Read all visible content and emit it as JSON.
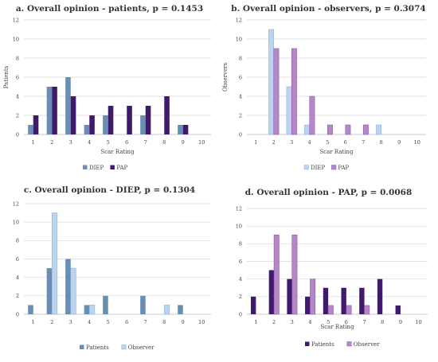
{
  "colors": {
    "dark_blue": "#6a8db3",
    "dark_purple": "#3f1a6b",
    "light_blue": "#bcd4ef",
    "light_blue_stroke": "#8fb3dc",
    "light_purple": "#b587c9",
    "light_purple_stroke": "#8b5aa5",
    "grid": "#d9d9d9"
  },
  "chart_data": [
    {
      "id": "a",
      "type": "bar",
      "title": "a. Overall opinion - patients, p = 0.1453",
      "xlabel": "Scar Rating",
      "ylabel": "Patients",
      "ylim": [
        0,
        12
      ],
      "yticks": [
        0,
        2,
        4,
        6,
        8,
        10,
        12
      ],
      "categories": [
        "1",
        "2",
        "3",
        "4",
        "5",
        "6",
        "7",
        "8",
        "9",
        "10"
      ],
      "grid": true,
      "legend_position": "bottom",
      "series": [
        {
          "name": "DIEP",
          "color_key": "dark_blue",
          "values": [
            1,
            5,
            6,
            1,
            2,
            0,
            2,
            0,
            1,
            0
          ]
        },
        {
          "name": "PAP",
          "color_key": "dark_purple",
          "values": [
            2,
            5,
            4,
            2,
            3,
            3,
            3,
            4,
            1,
            0
          ]
        }
      ]
    },
    {
      "id": "b",
      "type": "bar",
      "title": "b. Overall opinion - observers, p = 0.3074",
      "xlabel": "Scar Rating",
      "ylabel": "Observers",
      "ylim": [
        0,
        12
      ],
      "yticks": [
        0,
        2,
        4,
        6,
        8,
        10,
        12
      ],
      "categories": [
        "1",
        "2",
        "3",
        "4",
        "5",
        "6",
        "7",
        "8",
        "9",
        "10"
      ],
      "grid": true,
      "legend_position": "bottom",
      "series": [
        {
          "name": "DIEP",
          "color_key": "light_blue",
          "values": [
            0,
            11,
            5,
            1,
            0,
            0,
            0,
            1,
            0,
            0
          ]
        },
        {
          "name": "PAP",
          "color_key": "light_purple",
          "values": [
            0,
            9,
            9,
            4,
            1,
            1,
            1,
            0,
            0,
            0
          ]
        }
      ]
    },
    {
      "id": "c",
      "type": "bar",
      "title": "c. Overall opinion - DIEP, p = 0.1304",
      "xlabel": "Scar Rating",
      "ylabel": "",
      "ylim": [
        0,
        12
      ],
      "yticks": [
        0,
        2,
        4,
        6,
        8,
        10,
        12
      ],
      "categories": [
        "1",
        "2",
        "3",
        "4",
        "5",
        "6",
        "7",
        "8",
        "9",
        "10"
      ],
      "grid": true,
      "legend_position": "bottom",
      "series": [
        {
          "name": "Patients",
          "color_key": "dark_blue",
          "values": [
            1,
            5,
            6,
            1,
            2,
            0,
            2,
            0,
            1,
            0
          ]
        },
        {
          "name": "Observer",
          "color_key": "light_blue",
          "values": [
            0,
            11,
            5,
            1,
            0,
            0,
            0,
            1,
            0,
            0
          ]
        }
      ]
    },
    {
      "id": "d",
      "type": "bar",
      "title": "d. Overall opinion - PAP, p = 0.0068",
      "xlabel": "Scar Rating",
      "ylabel": "",
      "ylim": [
        0,
        12
      ],
      "yticks": [
        0,
        2,
        4,
        6,
        8,
        10,
        12
      ],
      "categories": [
        "1",
        "2",
        "3",
        "4",
        "5",
        "6",
        "7",
        "8",
        "9",
        "10"
      ],
      "grid": true,
      "legend_position": "bottom",
      "series": [
        {
          "name": "Patients",
          "color_key": "dark_purple",
          "values": [
            2,
            5,
            4,
            2,
            3,
            3,
            3,
            4,
            1,
            0
          ]
        },
        {
          "name": "Observer",
          "color_key": "light_purple",
          "values": [
            0,
            9,
            9,
            4,
            1,
            1,
            1,
            0,
            0,
            0
          ]
        }
      ]
    }
  ]
}
